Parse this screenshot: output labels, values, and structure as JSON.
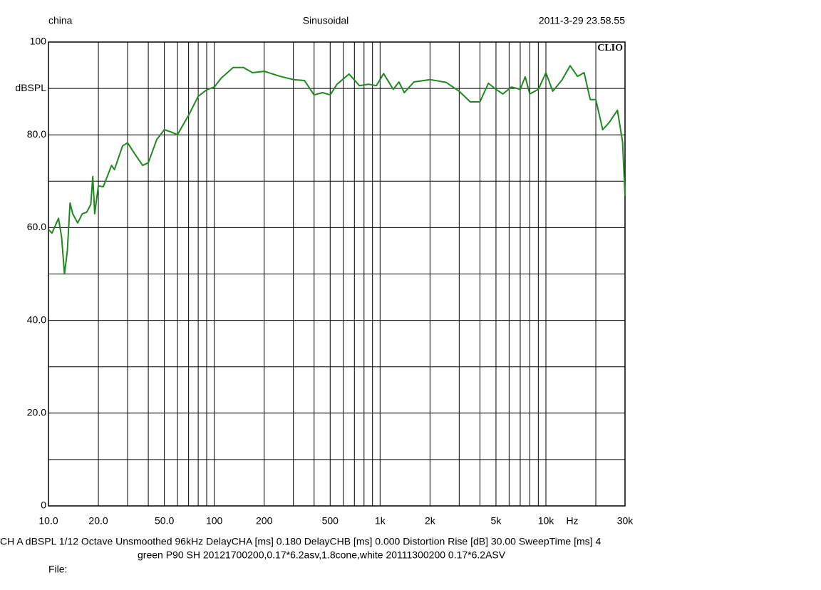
{
  "chart_data": {
    "type": "line",
    "header_left": "china",
    "title": "Sinusoidal",
    "header_right": "2011-3-29 23.58.55",
    "brand": "CLIO",
    "xlabel": "Hz",
    "xscale": "log",
    "grid": true,
    "xlim": [
      10,
      30000
    ],
    "ylim": [
      0,
      100
    ],
    "xticks": [
      {
        "value": 10,
        "label": "10.0"
      },
      {
        "value": 20,
        "label": "20.0"
      },
      {
        "value": 30,
        "label": null
      },
      {
        "value": 40,
        "label": null
      },
      {
        "value": 50,
        "label": "50.0"
      },
      {
        "value": 60,
        "label": null
      },
      {
        "value": 70,
        "label": null
      },
      {
        "value": 80,
        "label": null
      },
      {
        "value": 90,
        "label": null
      },
      100,
      200,
      {
        "value": 300,
        "label": null
      },
      {
        "value": 400,
        "label": null
      },
      500,
      {
        "value": 600,
        "label": null
      },
      {
        "value": 700,
        "label": null
      },
      {
        "value": 800,
        "label": null
      },
      {
        "value": 900,
        "label": null
      },
      {
        "value": 1000,
        "label": "1k"
      },
      {
        "value": 2000,
        "label": "2k"
      },
      {
        "value": 3000,
        "label": null
      },
      {
        "value": 4000,
        "label": null
      },
      {
        "value": 5000,
        "label": "5k"
      },
      {
        "value": 6000,
        "label": null
      },
      {
        "value": 7000,
        "label": null
      },
      {
        "value": 8000,
        "label": null
      },
      {
        "value": 9000,
        "label": null
      },
      {
        "value": 10000,
        "label": "10k"
      },
      {
        "value": 20000,
        "label": null
      },
      {
        "value": 30000,
        "label": "30k"
      }
    ],
    "yticks": [
      0,
      {
        "value": 10,
        "label": null
      },
      {
        "value": 20,
        "label": "20.0"
      },
      {
        "value": 30,
        "label": null
      },
      {
        "value": 40,
        "label": "40.0"
      },
      {
        "value": 50,
        "label": null
      },
      {
        "value": 60,
        "label": "60.0"
      },
      {
        "value": 70,
        "label": null
      },
      {
        "value": 80,
        "label": "80.0"
      },
      {
        "value": 90,
        "label": "dBSPL"
      },
      100
    ],
    "series": [
      {
        "name": "green",
        "color": "#1e8a1e",
        "x": [
          10,
          10.5,
          11.5,
          12,
          12.5,
          13,
          13.5,
          14,
          15,
          16,
          17,
          18,
          18.5,
          19,
          20,
          21.4,
          24,
          25,
          28,
          30,
          33,
          37,
          40,
          45,
          50,
          55,
          60,
          65,
          70,
          80,
          90,
          100,
          110,
          130,
          150,
          170,
          200,
          250,
          300,
          350,
          400,
          450,
          500,
          550,
          650,
          750,
          850,
          950,
          1050,
          1200,
          1300,
          1400,
          1600,
          2000,
          2500,
          3000,
          3500,
          4000,
          4500,
          5000,
          5500,
          6200,
          7000,
          7500,
          8000,
          9000,
          10000,
          11000,
          12500,
          14000,
          15500,
          17000,
          18500,
          20000,
          22000,
          24000,
          27000,
          29000,
          30000
        ],
        "values": [
          59.6,
          58.8,
          62,
          58,
          50,
          55,
          65.3,
          63,
          61,
          63,
          63.3,
          65,
          71,
          63,
          69,
          68.8,
          73.4,
          72.5,
          77.6,
          78.3,
          76,
          73.4,
          74,
          79,
          81.1,
          80.6,
          80,
          82.2,
          84.2,
          88.3,
          89.7,
          90.3,
          92.2,
          94.5,
          94.5,
          93.4,
          93.7,
          92.6,
          91.9,
          91.7,
          88.6,
          89.1,
          88.6,
          90.9,
          93.1,
          90.6,
          90.9,
          90.6,
          93.2,
          89.8,
          91.4,
          89.1,
          91.4,
          91.9,
          91.3,
          89.4,
          87.1,
          87.1,
          91.1,
          89.8,
          88.8,
          90.3,
          89.8,
          92.5,
          88.8,
          89.8,
          93.4,
          89.4,
          91.8,
          94.9,
          92.6,
          93.4,
          87.6,
          87.6,
          81.1,
          82.6,
          85.3,
          78.4,
          66.8
        ]
      }
    ],
    "footer_line1": "CH A   dBSPL    1/12 Octave   Unsmoothed   96kHz   DelayCHA [ms] 0.180    DelayCHB [ms] 0.000    Distortion Rise [dB] 30.00    SweepTime [ms] 4",
    "footer_line2": "green P90 SH 20121700200,0.17*6.2asv,1.8cone,white 20111300200 0.17*6.2ASV",
    "footer_file": "File:"
  }
}
